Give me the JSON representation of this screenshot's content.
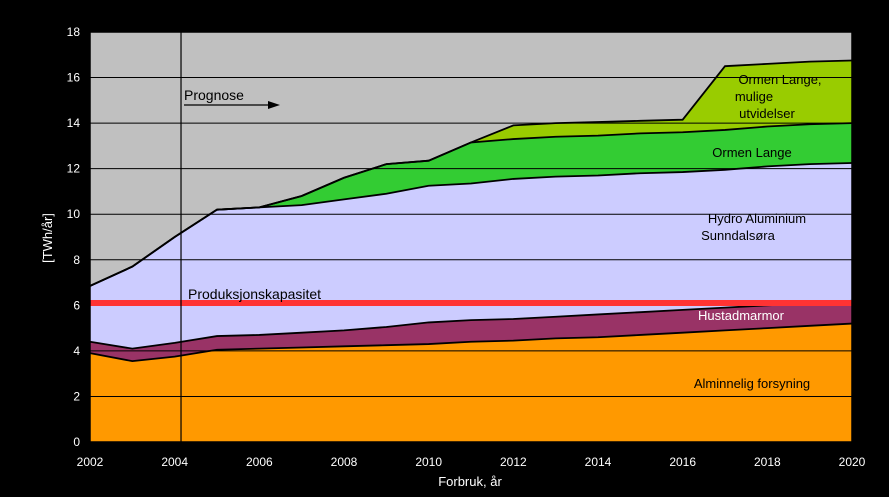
{
  "chart_data": {
    "type": "area",
    "stacked": true,
    "xlabel": "Forbruk, år",
    "ylabel": "[TWh/år]",
    "xlim": [
      2002,
      2020
    ],
    "ylim": [
      0,
      18
    ],
    "x_ticks": [
      "2002",
      "2004",
      "2006",
      "2008",
      "2010",
      "2012",
      "2014",
      "2016",
      "2018",
      "2020"
    ],
    "y_ticks": [
      "0",
      "2",
      "4",
      "6",
      "8",
      "10",
      "12",
      "14",
      "16",
      "18"
    ],
    "grid": true,
    "x": [
      2002,
      2003,
      2004,
      2005,
      2006,
      2007,
      2008,
      2009,
      2010,
      2011,
      2012,
      2013,
      2014,
      2015,
      2016,
      2017,
      2018,
      2019,
      2020
    ],
    "series": [
      {
        "name": "Alminnelig forsyning",
        "color": "#ff9900",
        "values": [
          3.9,
          3.55,
          3.75,
          4.05,
          4.1,
          4.15,
          4.2,
          4.25,
          4.3,
          4.4,
          4.45,
          4.55,
          4.6,
          4.7,
          4.8,
          4.9,
          5.0,
          5.1,
          5.2
        ]
      },
      {
        "name": "Hustadmarmor",
        "color": "#993366",
        "values": [
          0.5,
          0.55,
          0.6,
          0.6,
          0.6,
          0.65,
          0.7,
          0.8,
          0.95,
          0.95,
          0.95,
          0.95,
          1.0,
          1.0,
          1.0,
          1.0,
          1.0,
          1.0,
          1.0
        ]
      },
      {
        "name": "Hydro Aluminium Sunndalsøra",
        "color": "#ccccff",
        "values": [
          2.45,
          3.6,
          4.65,
          5.55,
          5.6,
          5.6,
          5.75,
          5.85,
          6.0,
          6.0,
          6.15,
          6.15,
          6.1,
          6.1,
          6.05,
          6.05,
          6.1,
          6.1,
          6.05
        ]
      },
      {
        "name": "Ormen Lange",
        "color": "#33cc33",
        "values": [
          0,
          0,
          0,
          0,
          0,
          0.4,
          0.95,
          1.3,
          1.1,
          1.8,
          1.75,
          1.75,
          1.75,
          1.75,
          1.75,
          1.75,
          1.75,
          1.75,
          1.75
        ]
      },
      {
        "name": "Ormen Lange, mulige utvidelser",
        "color": "#99cc00",
        "values": [
          0,
          0,
          0,
          0,
          0,
          0,
          0,
          0,
          0,
          0,
          0.6,
          0.6,
          0.6,
          0.55,
          0.55,
          2.8,
          2.75,
          2.75,
          2.75
        ]
      }
    ],
    "reference_line": {
      "name": "Produksjonskapasitet",
      "value": 6.1,
      "color": "#ff3333"
    },
    "forecast_start": 2004.15,
    "annotations": {
      "prognose": "Prognose",
      "produksjon": "Produksjonskapasitet"
    },
    "area_labels": {
      "alminnelig": "Alminnelig forsyning",
      "hustad": "Hustadmarmor",
      "hydro_1": "Hydro  Aluminium",
      "hydro_2": "Sunndalsøra",
      "ormen": "Ormen Lange",
      "ormen_ut_1": "Ormen Lange,",
      "ormen_ut_2": "mulige",
      "ormen_ut_3": "utvidelser"
    },
    "background_color": "#c0c0c0"
  }
}
